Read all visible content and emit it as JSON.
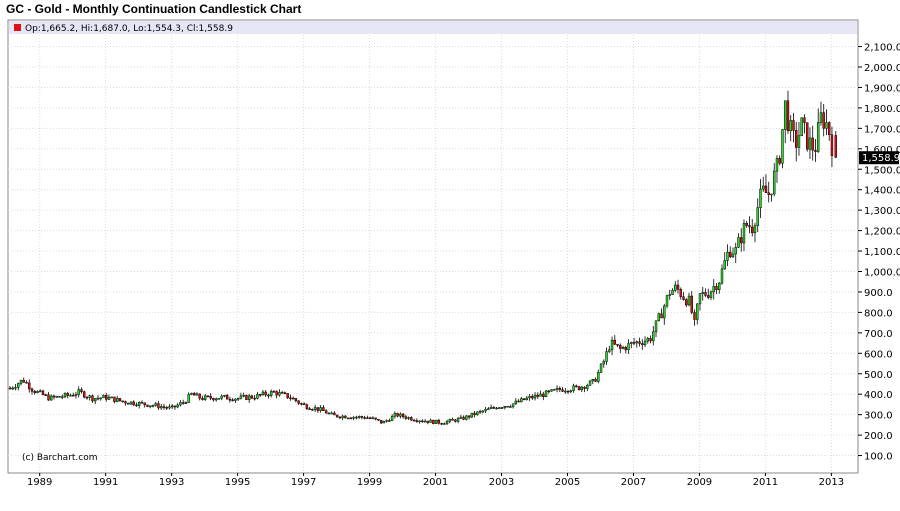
{
  "title": "GC - Gold - Monthly Continuation Candlestick Chart",
  "ohlc_header": "Op:1,665.2, Hi:1,687.0, Lo:1,554.3, Cl:1,558.9",
  "last_price_label": "1,558.9",
  "credit": "(c) Barchart.com",
  "colors": {
    "up": "#22dd22",
    "down": "#dd1111",
    "header_bg": "#e6e6f6",
    "last_box": "#000000"
  },
  "chart_data": {
    "type": "candlestick",
    "title": "GC - Gold - Monthly Continuation Candlestick Chart",
    "y_ticks": [
      100,
      200,
      300,
      400,
      500,
      600,
      700,
      800,
      900,
      1000,
      1100,
      1200,
      1300,
      1400,
      1500,
      1600,
      1700,
      1800,
      1900,
      2000,
      2100
    ],
    "y_tick_labels": [
      "100.0",
      "200.0",
      "300.0",
      "400.0",
      "500.0",
      "600.0",
      "700.0",
      "800.0",
      "900.0",
      "1,000.0",
      "1,100.0",
      "1,200.0",
      "1,300.0",
      "1,400.0",
      "1,500.0",
      "1,600.0",
      "1,700.0",
      "1,800.0",
      "1,900.0",
      "2,000.0",
      "2,100.0"
    ],
    "ylim": [
      50,
      2160
    ],
    "x_ticks": [
      1989,
      1991,
      1993,
      1995,
      1997,
      1999,
      2001,
      2003,
      2005,
      2007,
      2009,
      2011,
      2013
    ],
    "x_tick_labels": [
      "1989",
      "1991",
      "1993",
      "1995",
      "1997",
      "1999",
      "2001",
      "2003",
      "2005",
      "2007",
      "2009",
      "2011",
      "2013"
    ],
    "xlim": [
      1988.1,
      2013.2
    ],
    "grid": true,
    "close_anchors": [
      [
        1988.1,
        430
      ],
      [
        1988.5,
        470
      ],
      [
        1988.8,
        420
      ],
      [
        1989.3,
        380
      ],
      [
        1989.9,
        395
      ],
      [
        1990.2,
        410
      ],
      [
        1990.6,
        380
      ],
      [
        1991.0,
        385
      ],
      [
        1991.5,
        365
      ],
      [
        1992.0,
        355
      ],
      [
        1992.5,
        345
      ],
      [
        1993.0,
        330
      ],
      [
        1993.4,
        365
      ],
      [
        1993.6,
        400
      ],
      [
        1993.9,
        380
      ],
      [
        1994.5,
        385
      ],
      [
        1995.0,
        380
      ],
      [
        1995.5,
        388
      ],
      [
        1996.1,
        410
      ],
      [
        1996.6,
        385
      ],
      [
        1997.0,
        345
      ],
      [
        1997.5,
        325
      ],
      [
        1997.9,
        295
      ],
      [
        1998.5,
        290
      ],
      [
        1999.0,
        285
      ],
      [
        1999.4,
        260
      ],
      [
        1999.8,
        300
      ],
      [
        2000.3,
        280
      ],
      [
        2000.9,
        265
      ],
      [
        2001.2,
        262
      ],
      [
        2001.8,
        280
      ],
      [
        2002.3,
        310
      ],
      [
        2002.9,
        340
      ],
      [
        2003.3,
        350
      ],
      [
        2003.8,
        380
      ],
      [
        2004.3,
        400
      ],
      [
        2004.8,
        425
      ],
      [
        2005.3,
        430
      ],
      [
        2005.8,
        460
      ],
      [
        2006.1,
        560
      ],
      [
        2006.3,
        650
      ],
      [
        2006.6,
        620
      ],
      [
        2007.0,
        650
      ],
      [
        2007.5,
        670
      ],
      [
        2007.8,
        780
      ],
      [
        2008.1,
        900
      ],
      [
        2008.3,
        920
      ],
      [
        2008.5,
        880
      ],
      [
        2008.7,
        850
      ],
      [
        2008.85,
        740
      ],
      [
        2009.0,
        880
      ],
      [
        2009.3,
        900
      ],
      [
        2009.6,
        960
      ],
      [
        2009.9,
        1110
      ],
      [
        2010.1,
        1100
      ],
      [
        2010.4,
        1230
      ],
      [
        2010.6,
        1220
      ],
      [
        2010.9,
        1390
      ],
      [
        2011.1,
        1380
      ],
      [
        2011.4,
        1530
      ],
      [
        2011.6,
        1810
      ],
      [
        2011.75,
        1690
      ],
      [
        2011.9,
        1620
      ],
      [
        2012.1,
        1710
      ],
      [
        2012.3,
        1630
      ],
      [
        2012.5,
        1600
      ],
      [
        2012.7,
        1760
      ],
      [
        2012.9,
        1710
      ],
      [
        2013.1,
        1558.9
      ]
    ],
    "last_bar": {
      "open": 1665.2,
      "high": 1687.0,
      "low": 1554.3,
      "close": 1558.9
    }
  }
}
